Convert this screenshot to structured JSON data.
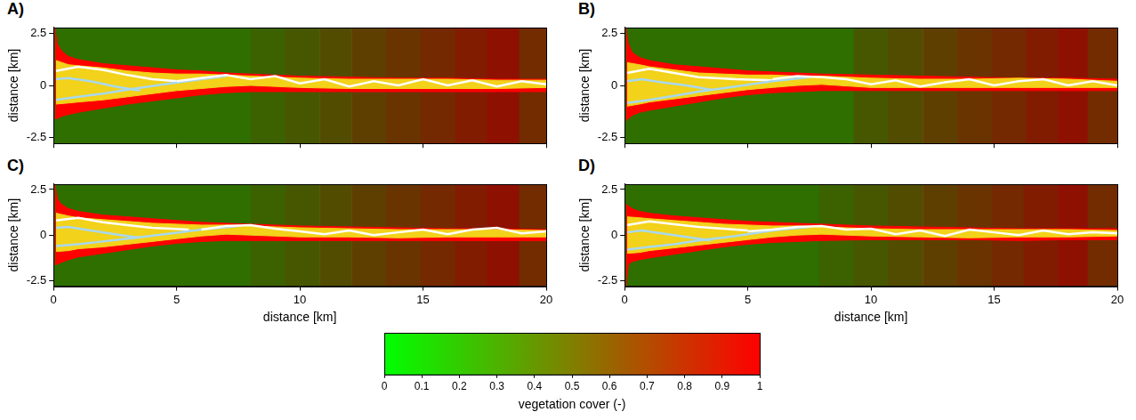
{
  "chart_data": [
    {
      "type": "map",
      "panel": "A)",
      "ylabel": "distance [km]",
      "tick_labels": "y",
      "xlim": [
        0,
        20
      ],
      "xticks": [
        0,
        5,
        10,
        15,
        20
      ],
      "ylim": [
        -2.8,
        2.8
      ],
      "yticks": [
        -2.5,
        0,
        2.5
      ],
      "cells": {
        "x_edges": [
          0,
          8,
          9.4,
          10.8,
          12.1,
          13.5,
          14.9,
          16.3,
          17.6,
          18.9,
          20
        ],
        "values": [
          0.3,
          0.38,
          0.45,
          0.52,
          0.6,
          0.67,
          0.74,
          0.82,
          0.9,
          0.72
        ]
      },
      "series": [
        {
          "type": "area",
          "color": "#ff0000",
          "x": [
            0.05,
            0.15,
            0.3,
            0.6,
            1,
            2,
            3,
            4,
            5,
            6,
            7,
            8,
            10,
            12,
            14,
            16,
            18,
            20
          ],
          "upper": [
            2.8,
            2.0,
            1.7,
            1.4,
            1.25,
            1.05,
            0.95,
            0.85,
            0.75,
            0.7,
            0.6,
            0.55,
            0.45,
            0.4,
            0.35,
            0.35,
            0.3,
            0.3
          ],
          "lower": [
            -1.6,
            -1.6,
            -1.5,
            -1.4,
            -1.3,
            -1.1,
            -0.9,
            -0.75,
            -0.6,
            -0.45,
            -0.35,
            -0.3,
            -0.3,
            -0.3,
            -0.3,
            -0.3,
            -0.3,
            -0.3
          ]
        },
        {
          "type": "area",
          "color": "#f2d21a",
          "x": [
            0.1,
            0.6,
            1,
            2,
            3,
            4,
            5,
            6,
            7,
            8,
            10,
            12,
            14,
            16,
            18,
            20
          ],
          "upper": [
            1.2,
            1.0,
            0.95,
            0.85,
            0.7,
            0.6,
            0.55,
            0.55,
            0.5,
            0.45,
            0.35,
            0.3,
            0.3,
            0.3,
            0.25,
            0.25
          ],
          "lower": [
            -0.9,
            -0.85,
            -0.8,
            -0.7,
            -0.55,
            -0.4,
            -0.25,
            -0.15,
            -0.05,
            0,
            -0.1,
            -0.15,
            -0.15,
            -0.15,
            -0.15,
            -0.1
          ]
        },
        {
          "type": "line",
          "color": "#ffffff",
          "x": [
            0.1,
            1,
            2,
            3,
            4,
            5
          ],
          "values": [
            0.7,
            0.9,
            0.75,
            0.5,
            0.3,
            0.2
          ]
        },
        {
          "type": "line",
          "color": "#a8d8f0",
          "x": [
            0.1,
            0.6,
            1.5,
            2.5,
            3.5
          ],
          "values": [
            0.3,
            0.35,
            0.2,
            -0.05,
            -0.25
          ]
        },
        {
          "type": "line",
          "color": "#a8d8f0",
          "x": [
            0.1,
            1,
            2,
            3,
            4.5,
            6,
            7
          ],
          "values": [
            -0.7,
            -0.55,
            -0.4,
            -0.2,
            0.05,
            0.3,
            0.45
          ]
        },
        {
          "type": "line",
          "color": "#ffffff",
          "x": [
            5,
            6,
            7,
            8,
            9,
            10,
            11,
            12,
            13,
            14,
            15,
            16,
            17,
            18,
            19,
            20
          ],
          "values": [
            0.2,
            0.35,
            0.5,
            0.3,
            0.45,
            0.1,
            0.3,
            -0.05,
            0.2,
            0,
            0.3,
            0,
            0.25,
            -0.05,
            0.2,
            0.05
          ]
        }
      ]
    },
    {
      "type": "map",
      "panel": "B)",
      "ylabel": "distance [km]",
      "tick_labels": "y",
      "xlim": [
        0,
        20
      ],
      "xticks": [
        0,
        5,
        10,
        15,
        20
      ],
      "ylim": [
        -2.8,
        2.8
      ],
      "yticks": [
        -2.5,
        0,
        2.5
      ],
      "cells": {
        "x_edges": [
          0,
          9.3,
          10.7,
          12.1,
          13.5,
          14.9,
          16.3,
          17.6,
          18.8,
          20
        ],
        "values": [
          0.3,
          0.45,
          0.52,
          0.6,
          0.67,
          0.74,
          0.82,
          0.9,
          0.72
        ]
      },
      "series": [
        {
          "type": "area",
          "color": "#ff0000",
          "x": [
            0.05,
            0.15,
            0.3,
            0.6,
            1,
            2,
            3,
            4,
            5,
            6,
            7,
            8,
            10,
            12,
            14,
            16,
            18,
            20
          ],
          "upper": [
            2.8,
            2.0,
            1.6,
            1.35,
            1.2,
            1.0,
            0.9,
            0.8,
            0.7,
            0.65,
            0.6,
            0.55,
            0.5,
            0.45,
            0.4,
            0.35,
            0.35,
            0.3
          ],
          "lower": [
            -1.7,
            -1.6,
            -1.45,
            -1.3,
            -1.2,
            -1.0,
            -0.8,
            -0.6,
            -0.45,
            -0.35,
            -0.3,
            -0.25,
            -0.25,
            -0.25,
            -0.25,
            -0.25,
            -0.25,
            -0.25
          ]
        },
        {
          "type": "area",
          "color": "#f2d21a",
          "x": [
            0.1,
            0.6,
            1,
            2,
            3,
            4,
            5,
            6,
            7,
            8,
            10,
            12,
            14,
            16,
            18,
            20
          ],
          "upper": [
            1.1,
            1.0,
            0.9,
            0.75,
            0.6,
            0.55,
            0.5,
            0.5,
            0.45,
            0.45,
            0.35,
            0.3,
            0.3,
            0.35,
            0.3,
            0.2
          ],
          "lower": [
            -1.0,
            -0.9,
            -0.8,
            -0.65,
            -0.5,
            -0.35,
            -0.2,
            -0.1,
            0,
            0.05,
            -0.1,
            -0.1,
            -0.1,
            -0.1,
            -0.1,
            -0.1
          ]
        },
        {
          "type": "line",
          "color": "#ffffff",
          "x": [
            0.1,
            1,
            2,
            3,
            4.5,
            6
          ],
          "values": [
            0.6,
            0.8,
            0.6,
            0.4,
            0.3,
            0.25
          ]
        },
        {
          "type": "line",
          "color": "#a8d8f0",
          "x": [
            0.1,
            0.7,
            1.5,
            2.5,
            3.5
          ],
          "values": [
            0.2,
            0.3,
            0.15,
            0,
            -0.2
          ]
        },
        {
          "type": "line",
          "color": "#a8d8f0",
          "x": [
            0.1,
            1,
            2,
            3,
            4.5,
            6,
            7.5
          ],
          "values": [
            -0.85,
            -0.7,
            -0.5,
            -0.3,
            -0.05,
            0.2,
            0.4
          ]
        },
        {
          "type": "line",
          "color": "#ffffff",
          "x": [
            6,
            7,
            8,
            9,
            10,
            11,
            12,
            13,
            14,
            15,
            16,
            17,
            18,
            19,
            20
          ],
          "values": [
            0.3,
            0.45,
            0.4,
            0.3,
            0.05,
            0.25,
            -0.05,
            0.15,
            0.3,
            0,
            0.2,
            0.3,
            0,
            0.2,
            0
          ]
        }
      ]
    },
    {
      "type": "map",
      "panel": "C)",
      "xlabel": "distance [km]",
      "ylabel": "distance [km]",
      "xlim": [
        0,
        20
      ],
      "xticks": [
        0,
        5,
        10,
        15,
        20
      ],
      "ylim": [
        -2.8,
        2.8
      ],
      "yticks": [
        -2.5,
        0,
        2.5
      ],
      "cells": {
        "x_edges": [
          0,
          8,
          9.4,
          10.8,
          12.1,
          13.5,
          14.9,
          16.3,
          17.6,
          18.9,
          20
        ],
        "values": [
          0.3,
          0.38,
          0.45,
          0.52,
          0.6,
          0.67,
          0.74,
          0.82,
          0.9,
          0.72
        ]
      },
      "series": [
        {
          "type": "area",
          "color": "#ff0000",
          "x": [
            0.05,
            0.15,
            0.3,
            0.6,
            1,
            2,
            3,
            4,
            5,
            6,
            7,
            8,
            10,
            12,
            14,
            16,
            18,
            20
          ],
          "upper": [
            2.8,
            2.0,
            1.7,
            1.45,
            1.3,
            1.1,
            1.0,
            0.9,
            0.8,
            0.7,
            0.65,
            0.6,
            0.5,
            0.45,
            0.4,
            0.35,
            0.35,
            0.3
          ],
          "lower": [
            -1.6,
            -1.6,
            -1.5,
            -1.35,
            -1.2,
            -1.0,
            -0.8,
            -0.6,
            -0.45,
            -0.35,
            -0.3,
            -0.3,
            -0.3,
            -0.3,
            -0.3,
            -0.3,
            -0.3,
            -0.3
          ]
        },
        {
          "type": "area",
          "color": "#f2d21a",
          "x": [
            0.1,
            0.6,
            1,
            2,
            3,
            4,
            5,
            6,
            7,
            8,
            10,
            12,
            14,
            16,
            18,
            20
          ],
          "upper": [
            1.2,
            1.05,
            0.95,
            0.85,
            0.75,
            0.65,
            0.6,
            0.55,
            0.55,
            0.5,
            0.4,
            0.35,
            0.3,
            0.3,
            0.3,
            0.25
          ],
          "lower": [
            -0.9,
            -0.85,
            -0.75,
            -0.65,
            -0.5,
            -0.35,
            -0.2,
            -0.05,
            0.05,
            0,
            -0.1,
            -0.1,
            -0.15,
            -0.1,
            -0.1,
            -0.1
          ]
        },
        {
          "type": "line",
          "color": "#ffffff",
          "x": [
            0.1,
            1,
            2,
            3,
            4,
            5.5
          ],
          "values": [
            0.8,
            0.95,
            0.7,
            0.55,
            0.4,
            0.3
          ]
        },
        {
          "type": "line",
          "color": "#a8d8f0",
          "x": [
            0.1,
            0.6,
            1.5,
            2.5,
            3.5
          ],
          "values": [
            0.4,
            0.45,
            0.25,
            0.05,
            -0.15
          ]
        },
        {
          "type": "line",
          "color": "#a8d8f0",
          "x": [
            0.1,
            1,
            2,
            3,
            4.5,
            6,
            7.5
          ],
          "values": [
            -0.6,
            -0.5,
            -0.35,
            -0.2,
            0.05,
            0.3,
            0.5
          ]
        },
        {
          "type": "line",
          "color": "#ffffff",
          "x": [
            6,
            7,
            8,
            9,
            10,
            11,
            12,
            13,
            14,
            15,
            16,
            17,
            18,
            19,
            20
          ],
          "values": [
            0.3,
            0.5,
            0.55,
            0.35,
            0.2,
            0.05,
            0.25,
            0,
            0.15,
            0.3,
            0.05,
            0.3,
            0.4,
            0.1,
            0.2
          ]
        }
      ]
    },
    {
      "type": "map",
      "panel": "D)",
      "xlabel": "distance [km]",
      "ylabel": "distance [km]",
      "xlim": [
        0,
        20
      ],
      "xticks": [
        0,
        5,
        10,
        15,
        20
      ],
      "ylim": [
        -2.8,
        2.8
      ],
      "yticks": [
        -2.5,
        0,
        2.5
      ],
      "cells": {
        "x_edges": [
          0,
          7.9,
          9.3,
          10.7,
          12.1,
          13.5,
          14.9,
          16.2,
          17.6,
          18.8,
          20
        ],
        "values": [
          0.3,
          0.38,
          0.45,
          0.52,
          0.6,
          0.67,
          0.74,
          0.82,
          0.9,
          0.72
        ]
      },
      "series": [
        {
          "type": "area",
          "color": "#ff0000",
          "x": [
            0.05,
            0.15,
            0.3,
            0.6,
            1,
            2,
            3,
            4,
            5,
            6,
            7,
            8,
            10,
            12,
            14,
            16,
            18,
            20
          ],
          "upper": [
            1.7,
            1.6,
            1.45,
            1.3,
            1.2,
            1.05,
            0.95,
            0.85,
            0.75,
            0.7,
            0.65,
            0.6,
            0.5,
            0.45,
            0.4,
            0.35,
            0.35,
            0.35
          ],
          "lower": [
            -2.8,
            -1.6,
            -1.45,
            -1.35,
            -1.25,
            -1.05,
            -0.85,
            -0.65,
            -0.5,
            -0.4,
            -0.35,
            -0.3,
            -0.25,
            -0.25,
            -0.25,
            -0.3,
            -0.25,
            -0.25
          ]
        },
        {
          "type": "area",
          "color": "#f2d21a",
          "x": [
            0.1,
            0.6,
            1,
            2,
            3,
            4,
            5,
            6,
            7,
            8,
            10,
            12,
            14,
            16,
            18,
            20
          ],
          "upper": [
            1.0,
            0.95,
            0.9,
            0.8,
            0.7,
            0.6,
            0.55,
            0.5,
            0.5,
            0.45,
            0.35,
            0.3,
            0.3,
            0.3,
            0.3,
            0.25
          ],
          "lower": [
            -1.0,
            -0.95,
            -0.85,
            -0.7,
            -0.55,
            -0.4,
            -0.25,
            -0.1,
            0,
            0.05,
            -0.05,
            -0.1,
            -0.15,
            -0.1,
            -0.1,
            -0.05
          ]
        },
        {
          "type": "line",
          "color": "#ffffff",
          "x": [
            0.1,
            1,
            2,
            3,
            4,
            5
          ],
          "values": [
            0.55,
            0.75,
            0.6,
            0.45,
            0.35,
            0.25
          ]
        },
        {
          "type": "line",
          "color": "#a8d8f0",
          "x": [
            0.1,
            0.7,
            1.5,
            2.5,
            3.5
          ],
          "values": [
            0.15,
            0.25,
            0.1,
            -0.1,
            -0.3
          ]
        },
        {
          "type": "line",
          "color": "#a8d8f0",
          "x": [
            0.1,
            1,
            2,
            3,
            4.5,
            6,
            7.5
          ],
          "values": [
            -0.8,
            -0.65,
            -0.5,
            -0.3,
            -0.05,
            0.25,
            0.45
          ]
        },
        {
          "type": "line",
          "color": "#ffffff",
          "x": [
            5,
            6,
            7,
            8,
            9,
            10,
            11,
            12,
            13,
            14,
            15,
            16,
            17,
            18,
            19,
            20
          ],
          "values": [
            0.2,
            0.3,
            0.45,
            0.5,
            0.3,
            0.35,
            0.05,
            0.25,
            -0.05,
            0.3,
            0.15,
            0,
            0.25,
            0.05,
            0.15,
            0.1
          ]
        }
      ]
    }
  ],
  "colorbar": {
    "range": [
      0,
      1
    ],
    "ticks": [
      0,
      0.1,
      0.2,
      0.3,
      0.4,
      0.5,
      0.6,
      0.7,
      0.8,
      0.9,
      1
    ],
    "label": "vegetation cover (-)",
    "colors": [
      "#00ff00",
      "#ff0000"
    ]
  }
}
